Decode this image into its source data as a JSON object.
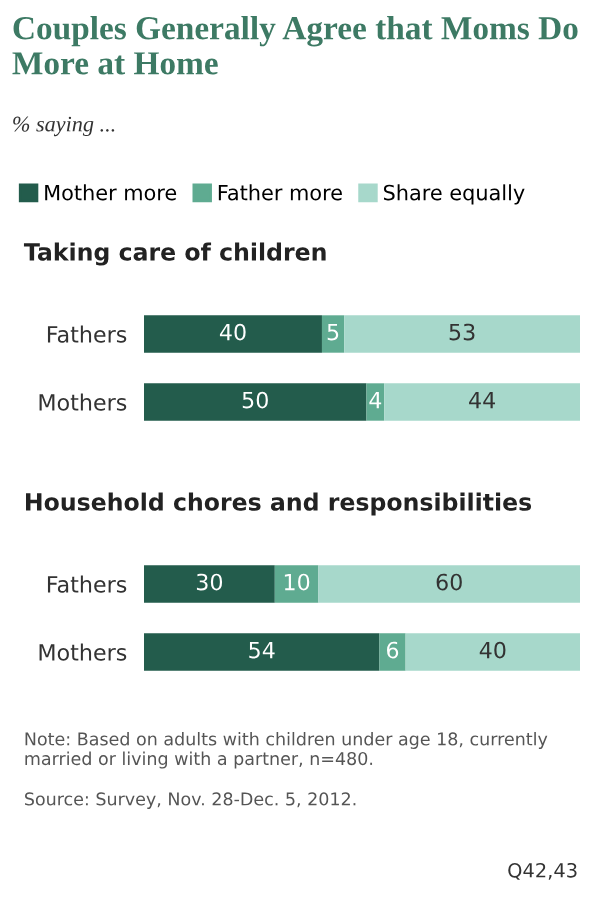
{
  "chart_data": [
    {
      "type": "bar",
      "orientation": "horizontal",
      "stacked": true,
      "title": "Couples Generally Agree that Moms Do More at Home",
      "subtitle": "% saying ...",
      "annotations": [
        "Taking care of children"
      ],
      "categories": [
        "Fathers",
        "Mothers"
      ],
      "legend": "top",
      "data_labels": true,
      "series": [
        {
          "name": "Mother more",
          "color": "#235c4c",
          "values": [
            40,
            50
          ]
        },
        {
          "name": "Father more",
          "color": "#5fab91",
          "values": [
            5,
            4
          ]
        },
        {
          "name": "Share equally",
          "color": "#a7d8cb",
          "values": [
            53,
            44
          ]
        }
      ]
    },
    {
      "type": "bar",
      "orientation": "horizontal",
      "stacked": true,
      "title": "Household chores and responsibilities",
      "categories": [
        "Fathers",
        "Mothers"
      ],
      "data_labels": true,
      "annotations": [
        "Note: Based on adults with children under age 18, currently married or living with a partner, n=480.",
        "Source: Survey, Nov. 28-Dec. 5, 2012.",
        "Q42,43"
      ],
      "series": [
        {
          "color": "#235c4c",
          "values": [
            30,
            54
          ]
        },
        {
          "color": "#5fab91",
          "values": [
            10,
            6
          ]
        },
        {
          "color": "#a7d8cb",
          "values": [
            60,
            40
          ]
        }
      ]
    }
  ]
}
